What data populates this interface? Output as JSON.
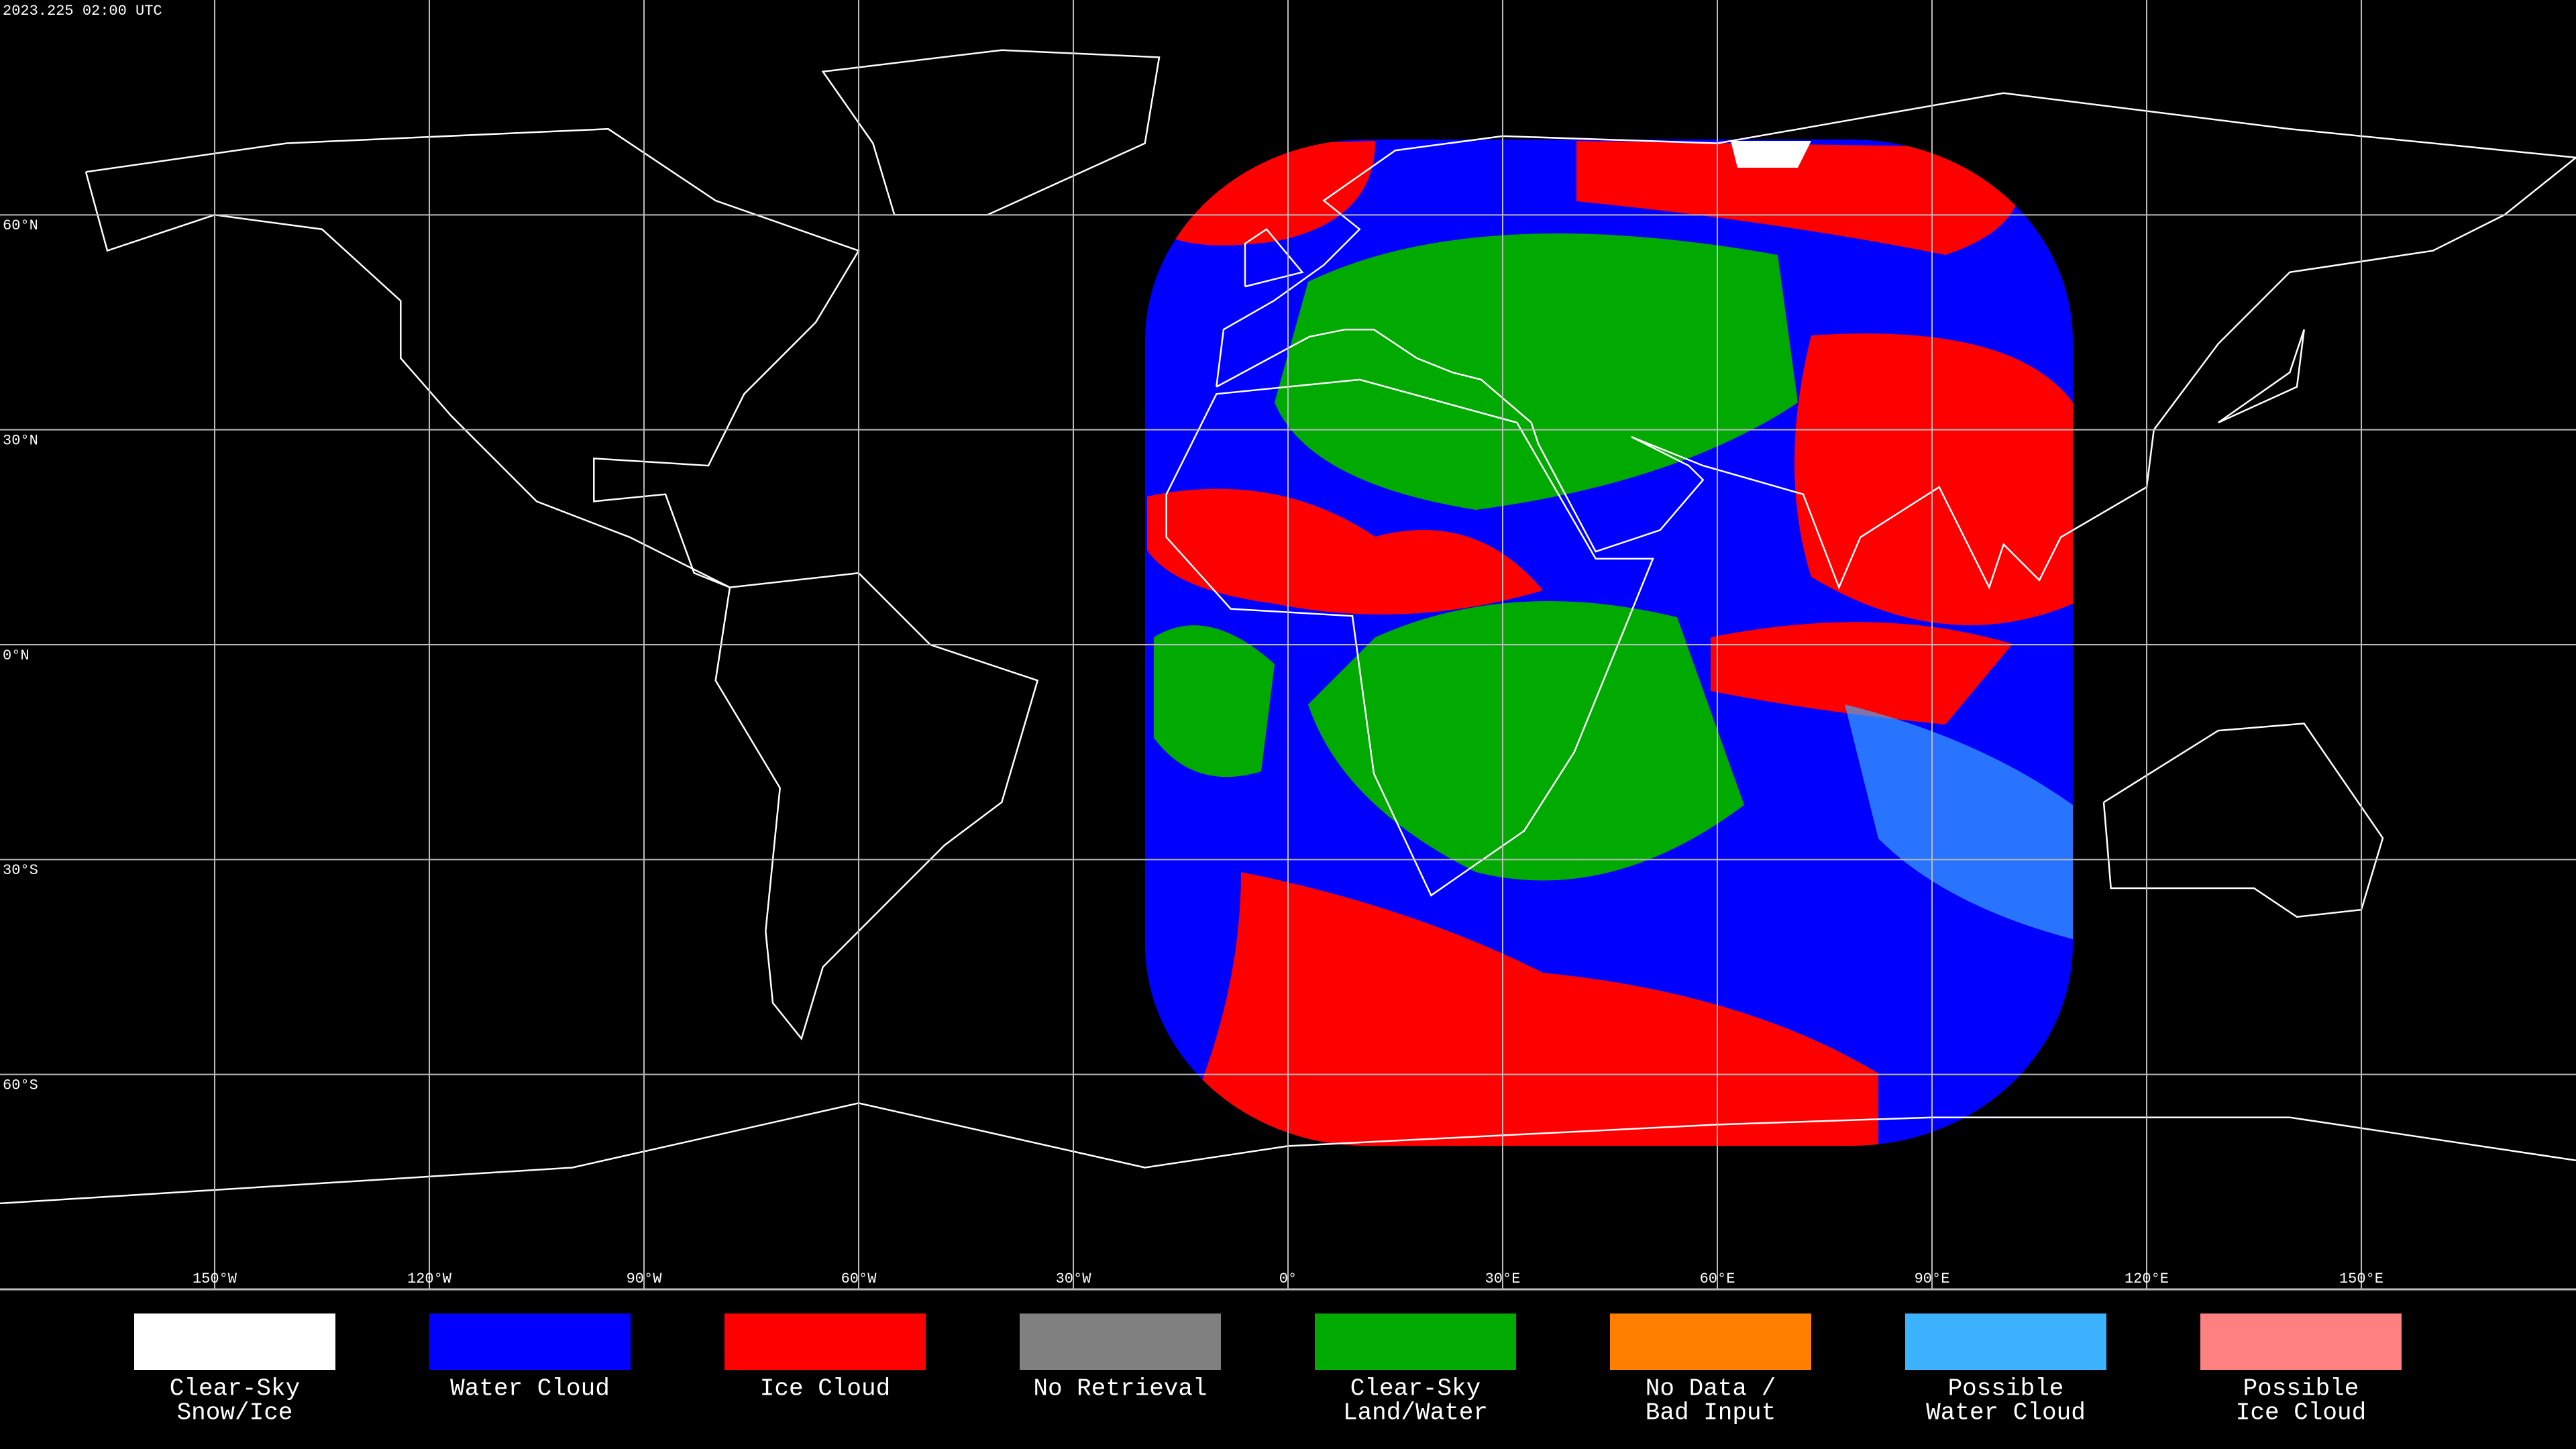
{
  "chart_data": {
    "type": "map",
    "title": "2023.225 02:00 UTC",
    "xlim": [
      -180,
      180
    ],
    "ylim": [
      -90,
      90
    ],
    "xticks": [
      {
        "value": -150,
        "label": "150°W"
      },
      {
        "value": -120,
        "label": "120°W"
      },
      {
        "value": -90,
        "label": "90°W"
      },
      {
        "value": -60,
        "label": "60°W"
      },
      {
        "value": -30,
        "label": "30°W"
      },
      {
        "value": 0,
        "label": "0°"
      },
      {
        "value": 30,
        "label": "30°E"
      },
      {
        "value": 60,
        "label": "60°E"
      },
      {
        "value": 90,
        "label": "90°E"
      },
      {
        "value": 120,
        "label": "120°E"
      },
      {
        "value": 150,
        "label": "150°E"
      }
    ],
    "yticks": [
      {
        "value": 60,
        "label": "60°N"
      },
      {
        "value": 30,
        "label": "30°N"
      },
      {
        "value": 0,
        "label": "0°N"
      },
      {
        "value": -30,
        "label": "30°S"
      },
      {
        "value": -60,
        "label": "60°S"
      }
    ],
    "grid": true,
    "legend": [
      {
        "lines": [
          "Clear-Sky",
          "Snow/Ice"
        ],
        "color": "#ffffff"
      },
      {
        "lines": [
          "Water Cloud"
        ],
        "color": "#0000ff"
      },
      {
        "lines": [
          "Ice Cloud"
        ],
        "color": "#ff0000"
      },
      {
        "lines": [
          "No Retrieval"
        ],
        "color": "#808080"
      },
      {
        "lines": [
          "Clear-Sky",
          "Land/Water"
        ],
        "color": "#00aa00"
      },
      {
        "lines": [
          "No Data /",
          "Bad Input"
        ],
        "color": "#ff8000"
      },
      {
        "lines": [
          "Possible",
          "Water Cloud"
        ],
        "color": "#3db2ff"
      },
      {
        "lines": [
          "Possible",
          "Ice Cloud"
        ],
        "color": "#ff8080"
      }
    ]
  }
}
